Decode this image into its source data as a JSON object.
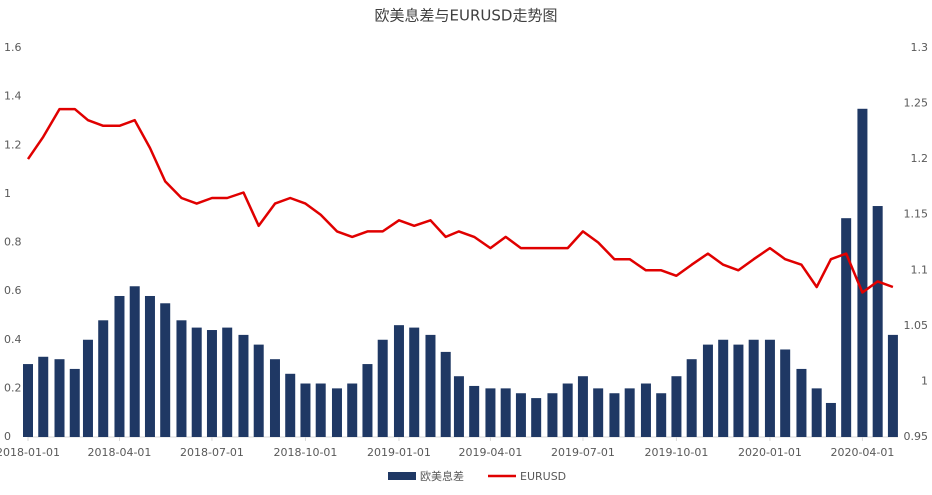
{
  "chart_data": {
    "type": "bar-line",
    "title": "欧美息差与EURUSD走势图",
    "x": [
      "2018-01-01",
      "2018-01-16",
      "2018-02-01",
      "2018-02-16",
      "2018-03-01",
      "2018-03-16",
      "2018-04-01",
      "2018-04-16",
      "2018-05-01",
      "2018-05-16",
      "2018-06-01",
      "2018-06-16",
      "2018-07-01",
      "2018-07-16",
      "2018-08-01",
      "2018-08-16",
      "2018-09-01",
      "2018-09-16",
      "2018-10-01",
      "2018-10-16",
      "2018-11-01",
      "2018-11-16",
      "2018-12-01",
      "2018-12-16",
      "2019-01-01",
      "2019-01-16",
      "2019-02-01",
      "2019-02-16",
      "2019-03-01",
      "2019-03-16",
      "2019-04-01",
      "2019-04-16",
      "2019-05-01",
      "2019-05-16",
      "2019-06-01",
      "2019-06-16",
      "2019-07-01",
      "2019-07-16",
      "2019-08-01",
      "2019-08-16",
      "2019-09-01",
      "2019-09-16",
      "2019-10-01",
      "2019-10-16",
      "2019-11-01",
      "2019-11-16",
      "2019-12-01",
      "2019-12-16",
      "2020-01-01",
      "2020-01-16",
      "2020-02-01",
      "2020-02-16",
      "2020-03-01",
      "2020-03-16",
      "2020-04-01",
      "2020-04-16",
      "2020-05-01"
    ],
    "xlim": [
      "2018-01-01",
      "2020-05-06"
    ],
    "xticks": [
      "2018-01-01",
      "2018-04-01",
      "2018-07-01",
      "2018-10-01",
      "2019-01-01",
      "2019-04-01",
      "2019-07-01",
      "2019-10-01",
      "2020-01-01",
      "2020-04-01"
    ],
    "ylim": [
      0,
      1.6
    ],
    "yticks": [
      0,
      0.2,
      0.4,
      0.6,
      0.8,
      1,
      1.2,
      1.4,
      1.6
    ],
    "y2lim": [
      0.95,
      1.3
    ],
    "y2ticks": [
      0.95,
      1,
      1.05,
      1.1,
      1.15,
      1.2,
      1.25,
      1.3
    ],
    "series": [
      {
        "name": "欧美息差",
        "type": "bar",
        "color": "#1f3864",
        "values": [
          0.3,
          0.33,
          0.32,
          0.28,
          0.4,
          0.48,
          0.58,
          0.62,
          0.58,
          0.55,
          0.48,
          0.45,
          0.44,
          0.45,
          0.42,
          0.38,
          0.32,
          0.26,
          0.22,
          0.22,
          0.2,
          0.22,
          0.3,
          0.4,
          0.46,
          0.45,
          0.42,
          0.35,
          0.25,
          0.21,
          0.2,
          0.2,
          0.18,
          0.16,
          0.18,
          0.22,
          0.25,
          0.2,
          0.18,
          0.2,
          0.22,
          0.18,
          0.25,
          0.32,
          0.38,
          0.4,
          0.38,
          0.4,
          0.4,
          0.36,
          0.28,
          0.2,
          0.14,
          0.9,
          1.35,
          0.95,
          0.42
        ]
      },
      {
        "name": "EURUSD",
        "type": "line",
        "axis": "y2",
        "color": "#e00000",
        "values": [
          1.2,
          1.22,
          1.245,
          1.245,
          1.235,
          1.23,
          1.23,
          1.235,
          1.21,
          1.18,
          1.165,
          1.16,
          1.165,
          1.165,
          1.17,
          1.14,
          1.16,
          1.165,
          1.16,
          1.15,
          1.135,
          1.13,
          1.135,
          1.135,
          1.145,
          1.14,
          1.145,
          1.13,
          1.135,
          1.13,
          1.12,
          1.13,
          1.12,
          1.12,
          1.12,
          1.12,
          1.135,
          1.125,
          1.11,
          1.11,
          1.1,
          1.1,
          1.095,
          1.105,
          1.115,
          1.105,
          1.1,
          1.11,
          1.12,
          1.11,
          1.105,
          1.085,
          1.11,
          1.115,
          1.08,
          1.09,
          1.085
        ]
      }
    ]
  }
}
